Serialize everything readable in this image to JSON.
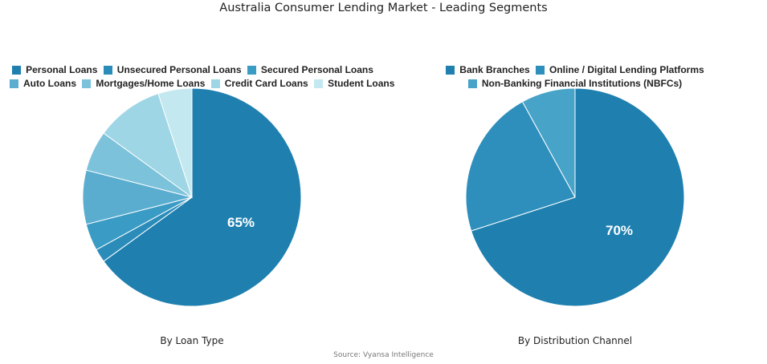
{
  "title": "Australia Consumer Lending Market - Leading Segments",
  "source": "Source: Vyansa Intelligence",
  "chart_data": [
    {
      "type": "pie",
      "title": "By Loan Type",
      "categories": [
        "Personal Loans",
        "Unsecured Personal Loans",
        "Secured Personal Loans",
        "Auto Loans",
        "Mortgages/Home Loans",
        "Credit Card Loans",
        "Student Loans"
      ],
      "values": [
        65,
        2,
        4,
        8,
        6,
        10,
        5
      ],
      "colors": [
        "#1f80b0",
        "#2b8cba",
        "#3a9bc4",
        "#5badd0",
        "#7bc2da",
        "#9ed6e5",
        "#c4e8ef"
      ],
      "data_labels": [
        {
          "category": "Personal Loans",
          "label": "65%"
        }
      ],
      "legend_position": "top"
    },
    {
      "type": "pie",
      "title": "By Distribution Channel",
      "categories": [
        "Bank Branches",
        "Online / Digital Lending Platforms",
        "Non-Banking Financial Institutions  (NBFCs)"
      ],
      "values": [
        70,
        22,
        8
      ],
      "colors": [
        "#1f80b0",
        "#2e8fbc",
        "#48a3c9"
      ],
      "data_labels": [
        {
          "category": "Bank Branches",
          "label": "70%"
        }
      ],
      "legend_position": "top"
    }
  ],
  "left": {
    "subtitle": "By Loan Type",
    "label": "65%",
    "legend_row1": [
      "Personal Loans",
      "Unsecured Personal Loans",
      "Secured Personal Loans"
    ],
    "legend_row2": [
      "Auto Loans",
      "Mortgages/Home Loans",
      "Credit Card Loans",
      "Student Loans"
    ]
  },
  "right": {
    "subtitle": "By Distribution Channel",
    "label": "70%",
    "legend_row1": [
      "Bank Branches",
      "Online / Digital Lending Platforms"
    ],
    "legend_row2": [
      "Non-Banking Financial Institutions  (NBFCs)"
    ]
  }
}
